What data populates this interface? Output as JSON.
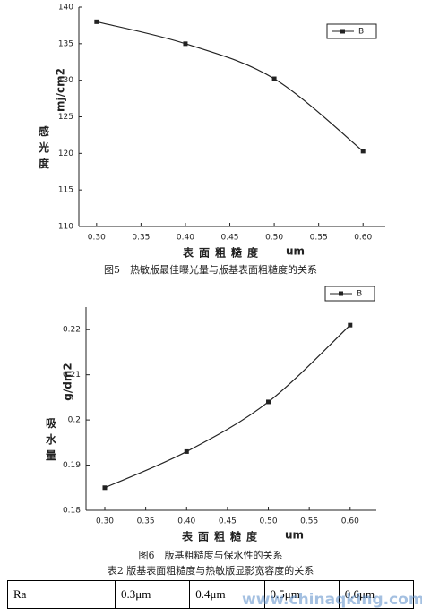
{
  "chart_data": [
    {
      "type": "line",
      "y_label": "感光度",
      "y_unit": "mj/cm2",
      "x_label": "表面粗糙度",
      "x_unit": "um",
      "x": [
        0.3,
        0.4,
        0.5,
        0.6
      ],
      "series": [
        {
          "name": "B",
          "color": "#222222",
          "values": [
            138,
            135,
            130.2,
            120.3
          ]
        }
      ],
      "xlim": [
        0.28,
        0.625
      ],
      "ylim": [
        110,
        140
      ],
      "xticks": [
        {
          "value": 0.3,
          "label": "0.30"
        },
        0.35,
        {
          "value": 0.4,
          "label": "0.40"
        },
        0.45,
        {
          "value": 0.5,
          "label": "0.50"
        },
        0.55,
        {
          "value": 0.6,
          "label": "0.60"
        }
      ],
      "yticks": [
        110,
        115,
        120,
        125,
        130,
        135,
        140
      ],
      "caption": "图5　热敏版最佳曝光量与版基表面粗糙度的关系"
    },
    {
      "type": "line",
      "y_label": "吸水量",
      "y_unit": "g/dm2",
      "x_label": "表面粗糙度",
      "x_unit": "um",
      "x": [
        0.3,
        0.4,
        0.5,
        0.6
      ],
      "series": [
        {
          "name": "B",
          "color": "#222222",
          "values": [
            0.185,
            0.193,
            0.204,
            0.221
          ]
        }
      ],
      "xlim": [
        0.277,
        0.632
      ],
      "ylim": [
        0.18,
        0.225
      ],
      "xticks": [
        {
          "value": 0.3,
          "label": "0.30"
        },
        0.35,
        {
          "value": 0.4,
          "label": "0.40"
        },
        0.45,
        {
          "value": 0.5,
          "label": "0.50"
        },
        0.55,
        {
          "value": 0.6,
          "label": "0.60"
        }
      ],
      "yticks": [
        0.18,
        0.19,
        0.2,
        0.21,
        0.22
      ],
      "caption": "图6　版基粗糙度与保水性的关系"
    }
  ],
  "table": {
    "caption": "表2 版基表面粗糙度与热敏版显影宽容度的关系",
    "rows": [
      [
        "Ra",
        "0.3μm",
        "0.4μm",
        "0.5μm",
        "0.6μm"
      ]
    ]
  },
  "watermark": "www.chinaqking.com"
}
